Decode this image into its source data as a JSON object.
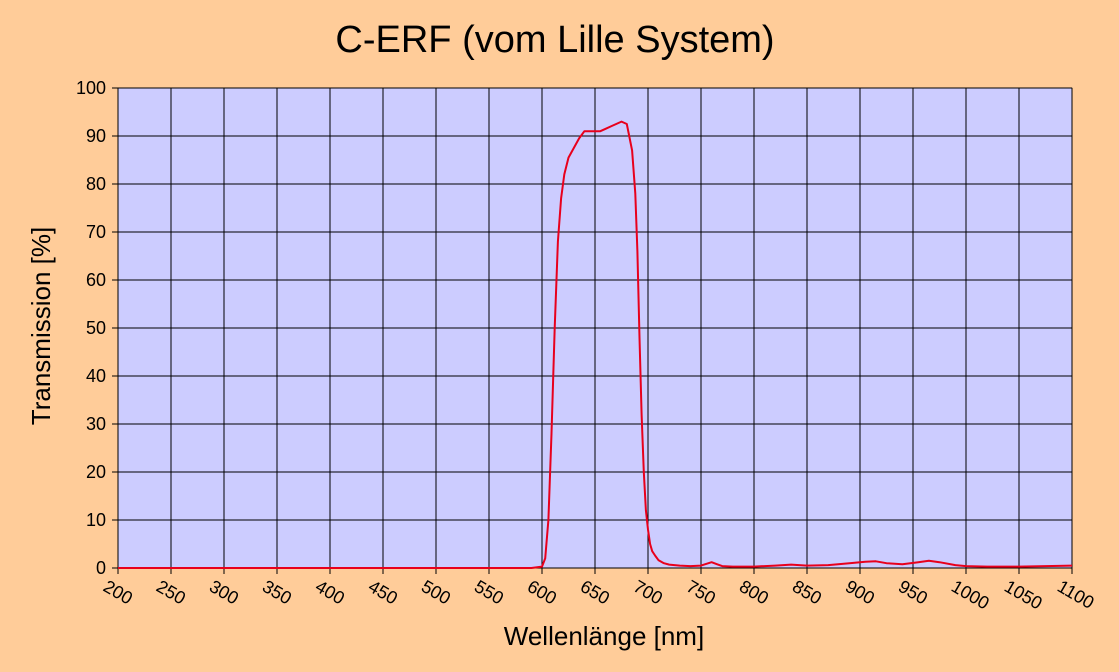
{
  "chart_data": {
    "type": "line",
    "title": "C-ERF (vom Lille System)",
    "xlabel": "Wellenlänge [nm]",
    "ylabel": "Transmission [%]",
    "xlim": [
      200,
      1100
    ],
    "ylim": [
      0,
      100
    ],
    "x_ticks": [
      "200",
      "250",
      "300",
      "350",
      "400",
      "450",
      "500",
      "550",
      "600",
      "650",
      "700",
      "750",
      "800",
      "850",
      "900",
      "950",
      "1000",
      "1050",
      "1100"
    ],
    "y_ticks": [
      "0",
      "10",
      "20",
      "30",
      "40",
      "50",
      "60",
      "70",
      "80",
      "90",
      "100"
    ],
    "grid": true,
    "legend": "none",
    "colors": {
      "background": "#FFCC99",
      "plot_area": "#CCCCFF",
      "line": "#E8001C",
      "grid": "#000000"
    },
    "series": [
      {
        "x": [
          200,
          300,
          400,
          500,
          590,
          600,
          603,
          606,
          609,
          612,
          615,
          618,
          621,
          625,
          630,
          635,
          640,
          645,
          650,
          655,
          660,
          665,
          670,
          675,
          680,
          685,
          688,
          690,
          692,
          694,
          696,
          698,
          700,
          702,
          704,
          707,
          710,
          715,
          720,
          730,
          740,
          750,
          760,
          765,
          770,
          780,
          800,
          820,
          835,
          850,
          870,
          890,
          905,
          915,
          925,
          940,
          955,
          965,
          975,
          990,
          1000,
          1020,
          1050,
          1075,
          1100
        ],
        "y": [
          0,
          0,
          0,
          0,
          0,
          0.3,
          2,
          10,
          28,
          50,
          68,
          77,
          82,
          85.5,
          87.5,
          89.5,
          91,
          91,
          91,
          91,
          91.5,
          92,
          92.5,
          93,
          92.5,
          87,
          78,
          66,
          48,
          32,
          20,
          12,
          8,
          5,
          3.5,
          2.5,
          1.6,
          1,
          0.7,
          0.5,
          0.4,
          0.5,
          1.2,
          0.8,
          0.4,
          0.3,
          0.3,
          0.5,
          0.7,
          0.5,
          0.6,
          1,
          1.3,
          1.4,
          1,
          0.8,
          1.2,
          1.5,
          1.2,
          0.6,
          0.4,
          0.3,
          0.3,
          0.4,
          0.5
        ]
      }
    ]
  }
}
